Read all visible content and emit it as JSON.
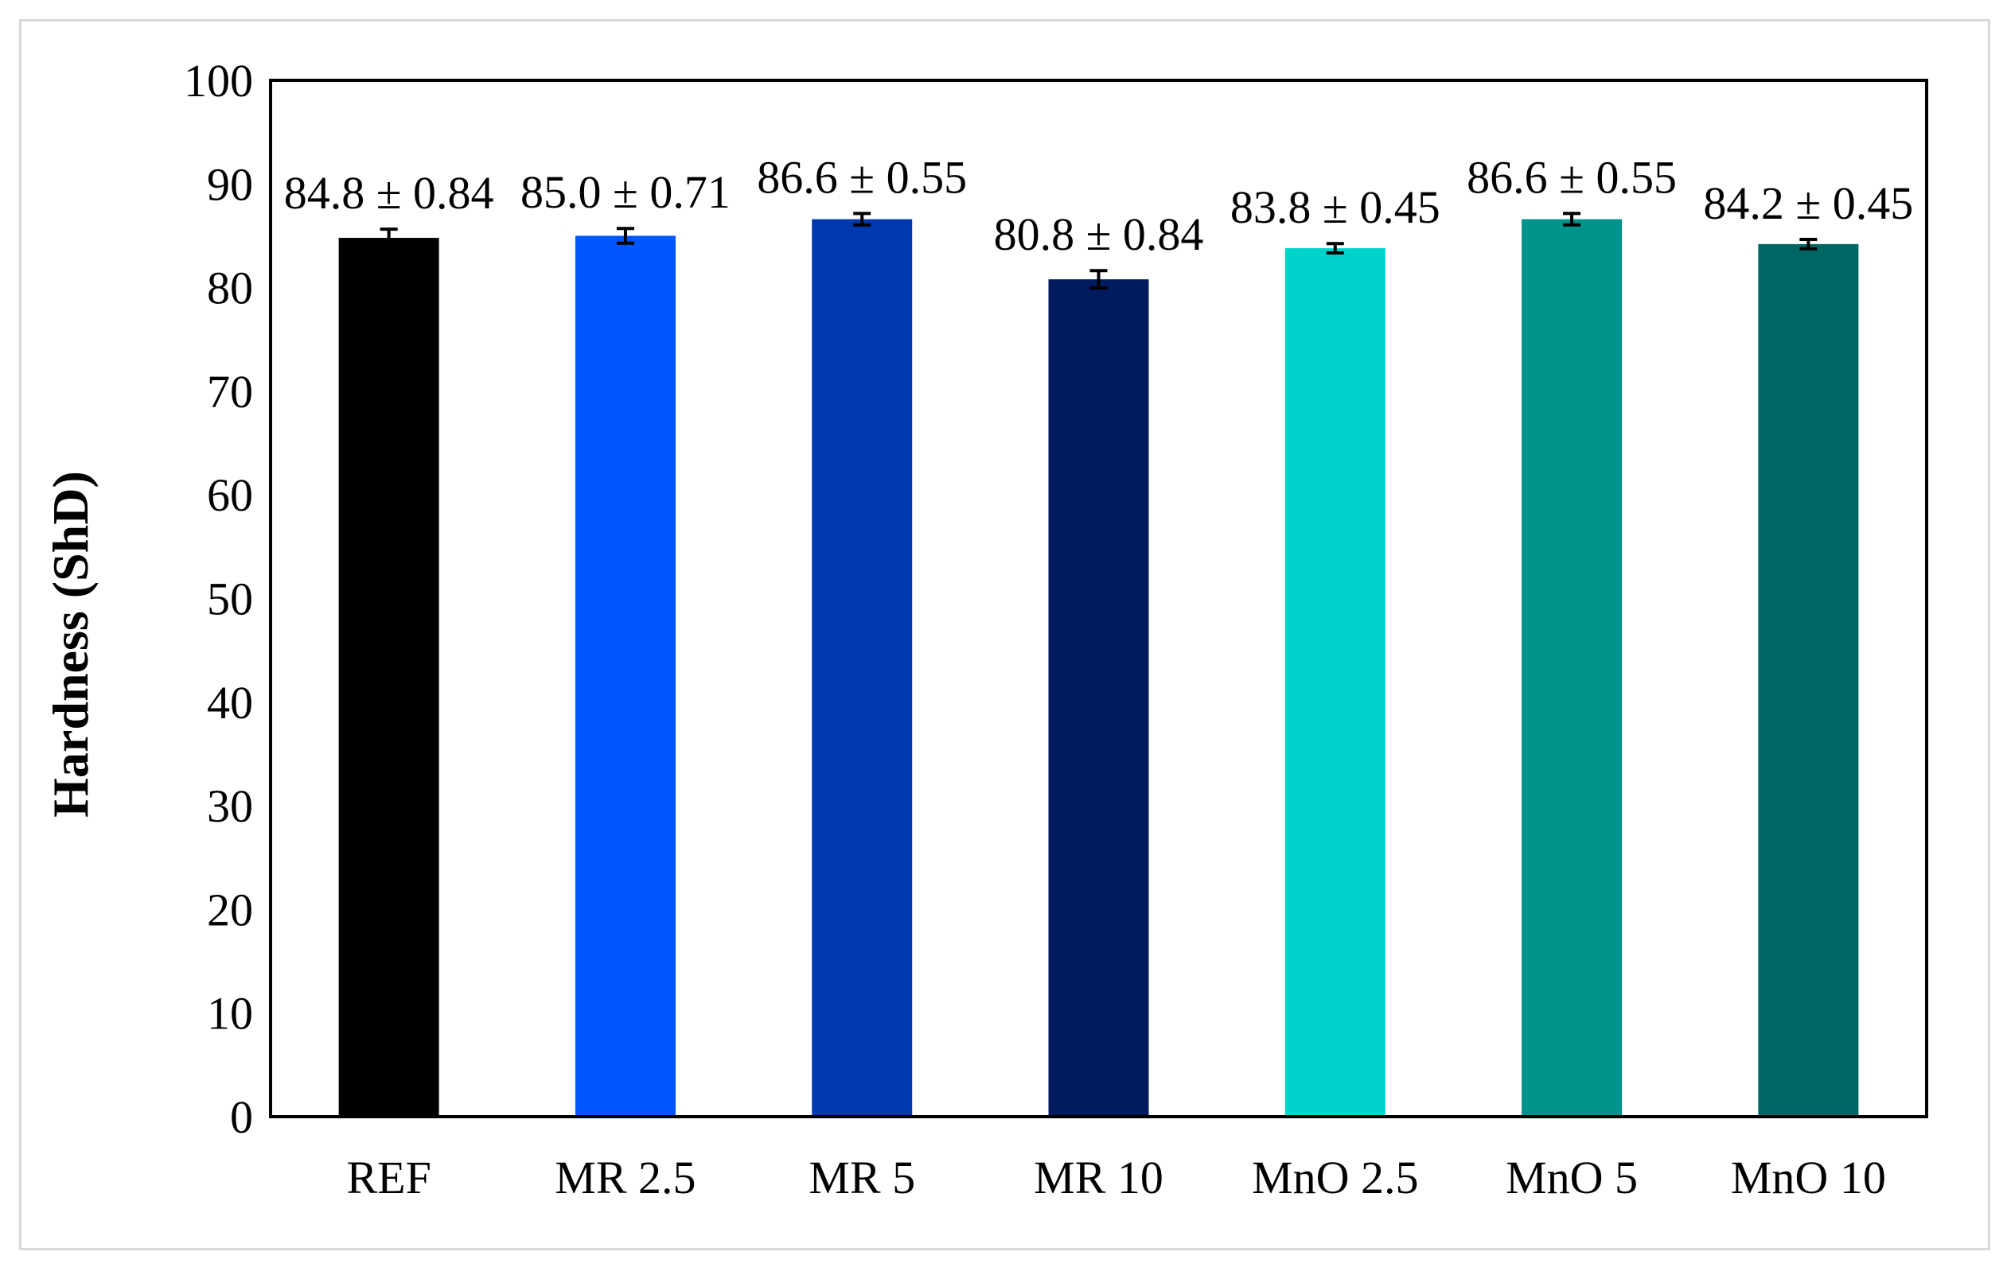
{
  "chart_data": {
    "type": "bar",
    "title": "",
    "xlabel": "",
    "ylabel": "Hardness (ShD)",
    "ylim": [
      0,
      100
    ],
    "yticks": [
      0,
      10,
      20,
      30,
      40,
      50,
      60,
      70,
      80,
      90,
      100
    ],
    "ytick_labels": [
      "0",
      "10",
      "20",
      "30",
      "40",
      "50",
      "60",
      "70",
      "80",
      "90",
      "100"
    ],
    "grid": false,
    "legend": "none",
    "categories": [
      "REF",
      "MR 2.5",
      "MR 5",
      "MR 10",
      "MnO 2.5",
      "MnO 5",
      "MnO 10"
    ],
    "values": [
      84.8,
      85.0,
      86.6,
      80.8,
      83.8,
      86.6,
      84.2
    ],
    "errors": [
      0.84,
      0.71,
      0.55,
      0.84,
      0.45,
      0.55,
      0.45
    ],
    "data_labels": [
      "84.8 ± 0.84",
      "85.0 ± 0.71",
      "86.6 ± 0.55",
      "80.8 ± 0.84",
      "83.8 ± 0.45",
      "86.6 ± 0.55",
      "84.2 ± 0.45"
    ],
    "colors": [
      "#000000",
      "#0055ff",
      "#0038b0",
      "#001a5e",
      "#00d2cc",
      "#00938c",
      "#006664"
    ]
  }
}
